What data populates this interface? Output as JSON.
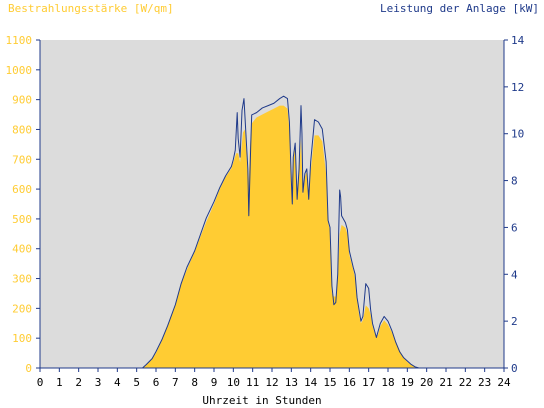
{
  "chart_data": {
    "type": "area",
    "left_axis_title": "Bestrahlungsstärke [W/qm]",
    "right_axis_title": "Leistung der Anlage [kW]",
    "xlabel": "Uhrzeit in Stunden",
    "x_ticks": [
      "0",
      "1",
      "2",
      "3",
      "4",
      "5",
      "6",
      "7",
      "8",
      "9",
      "10",
      "11",
      "12",
      "13",
      "14",
      "15",
      "16",
      "17",
      "18",
      "19",
      "20",
      "21",
      "22",
      "23",
      "24"
    ],
    "y_left_ticks": [
      "0",
      "100",
      "200",
      "300",
      "400",
      "500",
      "600",
      "700",
      "800",
      "900",
      "1000",
      "1100"
    ],
    "y_right_ticks": [
      "0",
      "2",
      "4",
      "6",
      "8",
      "10",
      "12",
      "14"
    ],
    "xlim": [
      0,
      24
    ],
    "ylim_left": [
      0,
      1100
    ],
    "ylim_right": [
      0,
      14
    ],
    "colors": {
      "irradiance_fill": "#ffcc33",
      "power_line": "#1f3a8a",
      "plot_bg": "#dcdcdc",
      "left_axis_text": "#ffcc33",
      "right_axis_text": "#1f3a8a",
      "x_axis_text": "#000000"
    },
    "series": [
      {
        "name": "",
        "axis": "left",
        "style": "area",
        "points": [
          [
            0,
            0
          ],
          [
            5.3,
            0
          ],
          [
            5.5,
            10
          ],
          [
            5.8,
            30
          ],
          [
            6.0,
            50
          ],
          [
            6.3,
            90
          ],
          [
            6.6,
            140
          ],
          [
            7.0,
            210
          ],
          [
            7.3,
            280
          ],
          [
            7.6,
            330
          ],
          [
            8.0,
            390
          ],
          [
            8.3,
            440
          ],
          [
            8.6,
            490
          ],
          [
            9.0,
            550
          ],
          [
            9.3,
            600
          ],
          [
            9.6,
            640
          ],
          [
            9.9,
            670
          ],
          [
            10.0,
            690
          ],
          [
            10.15,
            720
          ],
          [
            10.25,
            720
          ],
          [
            10.35,
            690
          ],
          [
            10.5,
            790
          ],
          [
            10.6,
            800
          ],
          [
            10.7,
            700
          ],
          [
            10.78,
            600
          ],
          [
            10.85,
            730
          ],
          [
            10.95,
            820
          ],
          [
            11.2,
            840
          ],
          [
            11.5,
            850
          ],
          [
            11.8,
            860
          ],
          [
            12.1,
            870
          ],
          [
            12.4,
            880
          ],
          [
            12.6,
            880
          ],
          [
            12.8,
            870
          ],
          [
            12.9,
            800
          ],
          [
            13.0,
            600
          ],
          [
            13.1,
            700
          ],
          [
            13.2,
            740
          ],
          [
            13.3,
            560
          ],
          [
            13.4,
            660
          ],
          [
            13.5,
            770
          ],
          [
            13.6,
            580
          ],
          [
            13.7,
            640
          ],
          [
            13.8,
            660
          ],
          [
            13.9,
            560
          ],
          [
            14.0,
            660
          ],
          [
            14.2,
            780
          ],
          [
            14.4,
            780
          ],
          [
            14.6,
            760
          ],
          [
            14.8,
            650
          ],
          [
            14.9,
            490
          ],
          [
            15.0,
            460
          ],
          [
            15.1,
            250
          ],
          [
            15.2,
            240
          ],
          [
            15.3,
            240
          ],
          [
            15.4,
            300
          ],
          [
            15.5,
            450
          ],
          [
            15.6,
            480
          ],
          [
            15.8,
            470
          ],
          [
            15.9,
            450
          ],
          [
            16.0,
            380
          ],
          [
            16.2,
            330
          ],
          [
            16.3,
            300
          ],
          [
            16.4,
            230
          ],
          [
            16.5,
            180
          ],
          [
            16.6,
            150
          ],
          [
            16.7,
            160
          ],
          [
            16.85,
            210
          ],
          [
            17.0,
            200
          ],
          [
            17.1,
            180
          ],
          [
            17.2,
            140
          ],
          [
            17.3,
            120
          ],
          [
            17.4,
            100
          ],
          [
            17.5,
            115
          ],
          [
            17.6,
            140
          ],
          [
            17.8,
            160
          ],
          [
            18.0,
            145
          ],
          [
            18.2,
            120
          ],
          [
            18.4,
            90
          ],
          [
            18.6,
            60
          ],
          [
            18.8,
            35
          ],
          [
            19.0,
            20
          ],
          [
            19.2,
            10
          ],
          [
            19.4,
            4
          ],
          [
            19.6,
            0
          ],
          [
            24,
            0
          ]
        ]
      },
      {
        "name": "",
        "axis": "right",
        "style": "line",
        "points": [
          [
            0,
            0
          ],
          [
            5.3,
            0
          ],
          [
            5.5,
            0.15
          ],
          [
            5.8,
            0.4
          ],
          [
            6.0,
            0.7
          ],
          [
            6.3,
            1.2
          ],
          [
            6.6,
            1.8
          ],
          [
            7.0,
            2.7
          ],
          [
            7.3,
            3.6
          ],
          [
            7.6,
            4.3
          ],
          [
            8.0,
            5.0
          ],
          [
            8.3,
            5.7
          ],
          [
            8.6,
            6.4
          ],
          [
            9.0,
            7.1
          ],
          [
            9.3,
            7.7
          ],
          [
            9.6,
            8.2
          ],
          [
            9.9,
            8.6
          ],
          [
            10.0,
            8.9
          ],
          [
            10.1,
            9.3
          ],
          [
            10.2,
            10.9
          ],
          [
            10.25,
            9.8
          ],
          [
            10.35,
            9.0
          ],
          [
            10.45,
            11.0
          ],
          [
            10.55,
            11.5
          ],
          [
            10.65,
            10.0
          ],
          [
            10.75,
            8.5
          ],
          [
            10.8,
            6.5
          ],
          [
            10.9,
            9.5
          ],
          [
            10.95,
            10.8
          ],
          [
            11.2,
            10.9
          ],
          [
            11.5,
            11.1
          ],
          [
            11.8,
            11.2
          ],
          [
            12.1,
            11.3
          ],
          [
            12.4,
            11.5
          ],
          [
            12.6,
            11.6
          ],
          [
            12.8,
            11.5
          ],
          [
            12.9,
            10.5
          ],
          [
            13.0,
            8.0
          ],
          [
            13.05,
            7.0
          ],
          [
            13.1,
            9.0
          ],
          [
            13.2,
            9.6
          ],
          [
            13.3,
            7.2
          ],
          [
            13.4,
            8.5
          ],
          [
            13.5,
            11.2
          ],
          [
            13.55,
            10.0
          ],
          [
            13.6,
            7.5
          ],
          [
            13.7,
            8.3
          ],
          [
            13.8,
            8.5
          ],
          [
            13.9,
            7.2
          ],
          [
            14.0,
            8.8
          ],
          [
            14.2,
            10.6
          ],
          [
            14.4,
            10.5
          ],
          [
            14.6,
            10.2
          ],
          [
            14.8,
            8.8
          ],
          [
            14.9,
            6.3
          ],
          [
            15.0,
            6.0
          ],
          [
            15.1,
            3.5
          ],
          [
            15.2,
            2.7
          ],
          [
            15.3,
            2.8
          ],
          [
            15.4,
            4.0
          ],
          [
            15.5,
            7.6
          ],
          [
            15.55,
            7.3
          ],
          [
            15.6,
            6.5
          ],
          [
            15.8,
            6.2
          ],
          [
            15.9,
            5.9
          ],
          [
            16.0,
            5.0
          ],
          [
            16.2,
            4.3
          ],
          [
            16.3,
            4.0
          ],
          [
            16.4,
            3.0
          ],
          [
            16.5,
            2.5
          ],
          [
            16.6,
            2.0
          ],
          [
            16.7,
            2.2
          ],
          [
            16.85,
            3.6
          ],
          [
            17.0,
            3.4
          ],
          [
            17.1,
            2.5
          ],
          [
            17.2,
            1.9
          ],
          [
            17.3,
            1.6
          ],
          [
            17.4,
            1.3
          ],
          [
            17.5,
            1.6
          ],
          [
            17.6,
            1.9
          ],
          [
            17.8,
            2.2
          ],
          [
            18.0,
            2.0
          ],
          [
            18.2,
            1.6
          ],
          [
            18.4,
            1.1
          ],
          [
            18.6,
            0.7
          ],
          [
            18.8,
            0.45
          ],
          [
            19.0,
            0.3
          ],
          [
            19.2,
            0.15
          ],
          [
            19.4,
            0.05
          ],
          [
            19.6,
            0
          ],
          [
            24,
            0
          ]
        ]
      }
    ]
  }
}
